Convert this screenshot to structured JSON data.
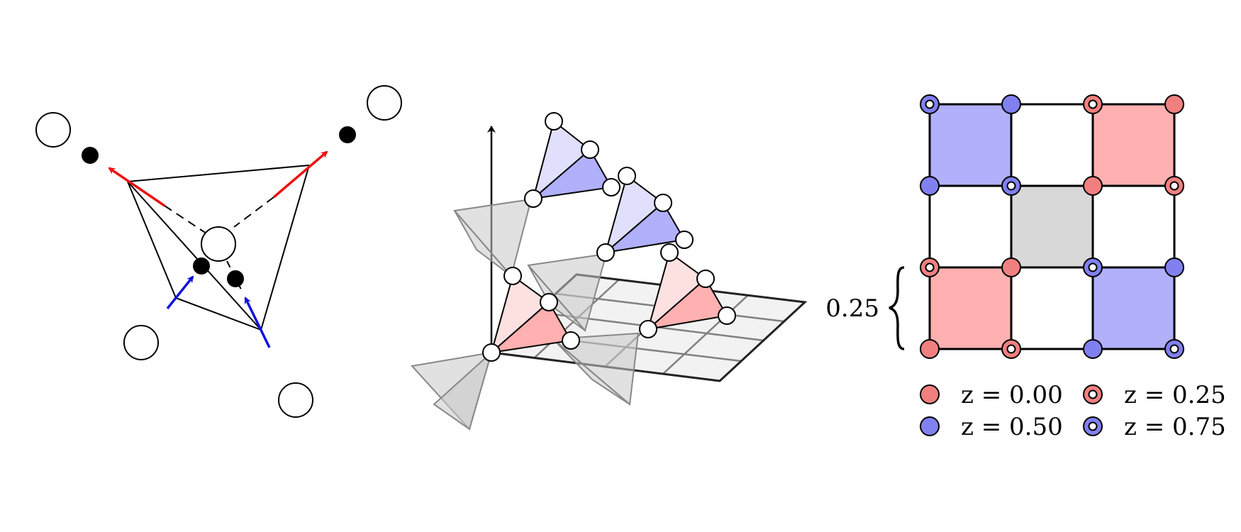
{
  "panel_c": {
    "height_marker": "0.25",
    "legend": [
      {
        "label": "z = 0.00",
        "fill": "#f08080",
        "hollow": false
      },
      {
        "label": "z = 0.25",
        "fill": "#f08080",
        "hollow": true
      },
      {
        "label": "z = 0.50",
        "fill": "#8080f0",
        "hollow": false
      },
      {
        "label": "z = 0.75",
        "fill": "#8080f0",
        "hollow": true
      }
    ]
  },
  "colors": {
    "red_arrow": "#ee1111",
    "blue_arrow": "#1111dd",
    "red_fill": "#ffb0b0",
    "blue_fill": "#b0b0fb",
    "gray_fill": "#d8d8d8"
  }
}
